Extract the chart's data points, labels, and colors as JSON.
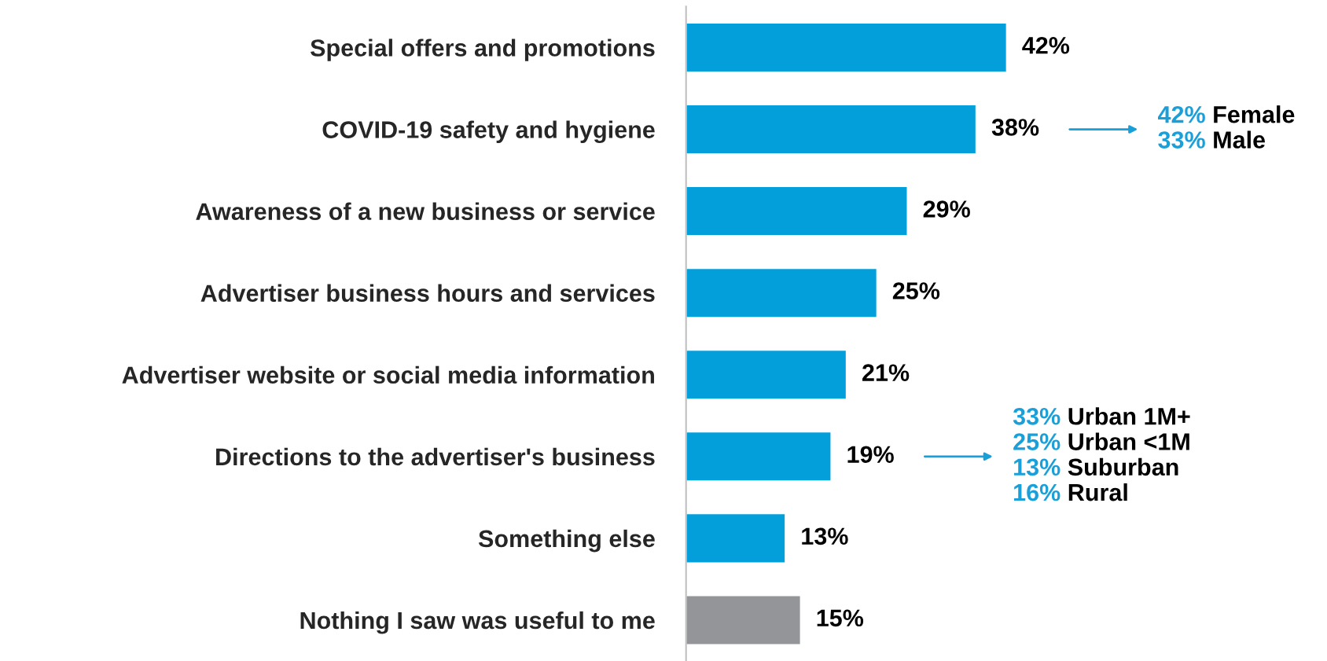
{
  "chart_data": {
    "type": "bar",
    "orientation": "horizontal",
    "categories": [
      "Special offers and promotions",
      "COVID-19 safety and hygiene",
      "Awareness of a new business or service",
      "Advertiser business hours and services",
      "Advertiser website or social media information",
      "Directions to the advertiser's business",
      "Something else",
      "Nothing I saw was useful to me"
    ],
    "values": [
      42,
      38,
      29,
      25,
      21,
      19,
      13,
      15
    ],
    "colors": [
      "#039fdb",
      "#039fdb",
      "#039fdb",
      "#039fdb",
      "#039fdb",
      "#039fdb",
      "#039fdb",
      "#939598"
    ],
    "value_labels": [
      "42%",
      "38%",
      "29%",
      "25%",
      "21%",
      "19%",
      "13%",
      "15%"
    ],
    "annotations": [
      "42% Female",
      "33% Male",
      "33% Urban 1M+",
      "25% Urban <1M",
      "13% Suburban",
      "16% Rural"
    ],
    "grid": false,
    "legend": false
  }
}
